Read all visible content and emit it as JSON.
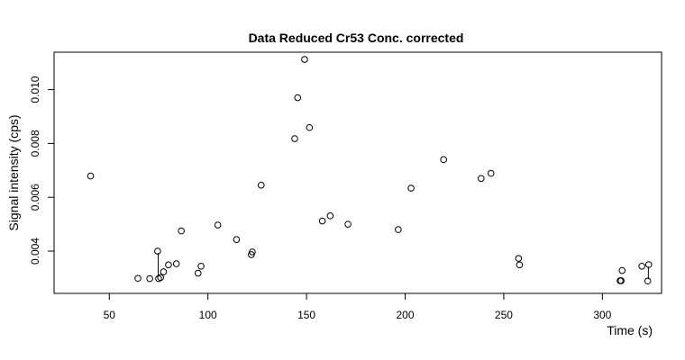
{
  "chart_data": {
    "type": "scatter",
    "title": "Data Reduced Cr53 Conc. corrected",
    "xlabel": "Time (s)",
    "ylabel": "Signal intensity (cps)",
    "xlim": [
      22,
      330
    ],
    "ylim": [
      0.00243,
      0.01139
    ],
    "xticks": [
      50,
      100,
      150,
      200,
      250,
      300
    ],
    "xtick_labels": [
      "50",
      "100",
      "150",
      "200",
      "250",
      "300"
    ],
    "yticks": [
      0.004,
      0.006,
      0.008,
      0.01
    ],
    "ytick_labels": [
      "0.004",
      "0.006",
      "0.008",
      "0.010"
    ],
    "grid": false,
    "legend": "none",
    "x": [
      40.5,
      64.5,
      70.5,
      74.5,
      75.0,
      76.0,
      77.5,
      80.0,
      84.0,
      86.5,
      95.0,
      96.5,
      105.0,
      114.5,
      122.0,
      122.5,
      127.0,
      144.0,
      145.5,
      149.0,
      151.5,
      158.0,
      162.0,
      171.0,
      196.5,
      203.0,
      219.5,
      238.5,
      243.5,
      257.5,
      258.0,
      309.0,
      309.5,
      310.0,
      320.0,
      323.0,
      323.5
    ],
    "y": [
      0.00679,
      0.00299,
      0.00298,
      0.004,
      0.00298,
      0.00302,
      0.00323,
      0.00349,
      0.00353,
      0.00475,
      0.00318,
      0.00344,
      0.00497,
      0.00443,
      0.00387,
      0.00397,
      0.00645,
      0.00818,
      0.0097,
      0.01112,
      0.00859,
      0.00512,
      0.00531,
      0.005,
      0.0048,
      0.00634,
      0.0074,
      0.0067,
      0.00689,
      0.00373,
      0.00349,
      0.0029,
      0.0029,
      0.00328,
      0.00344,
      0.00289,
      0.0035
    ],
    "segments": [
      {
        "x": 74.8,
        "y1": 0.00393,
        "y2": 0.00305
      },
      {
        "x": 323.3,
        "y1": 0.00343,
        "y2": 0.00296
      }
    ]
  }
}
